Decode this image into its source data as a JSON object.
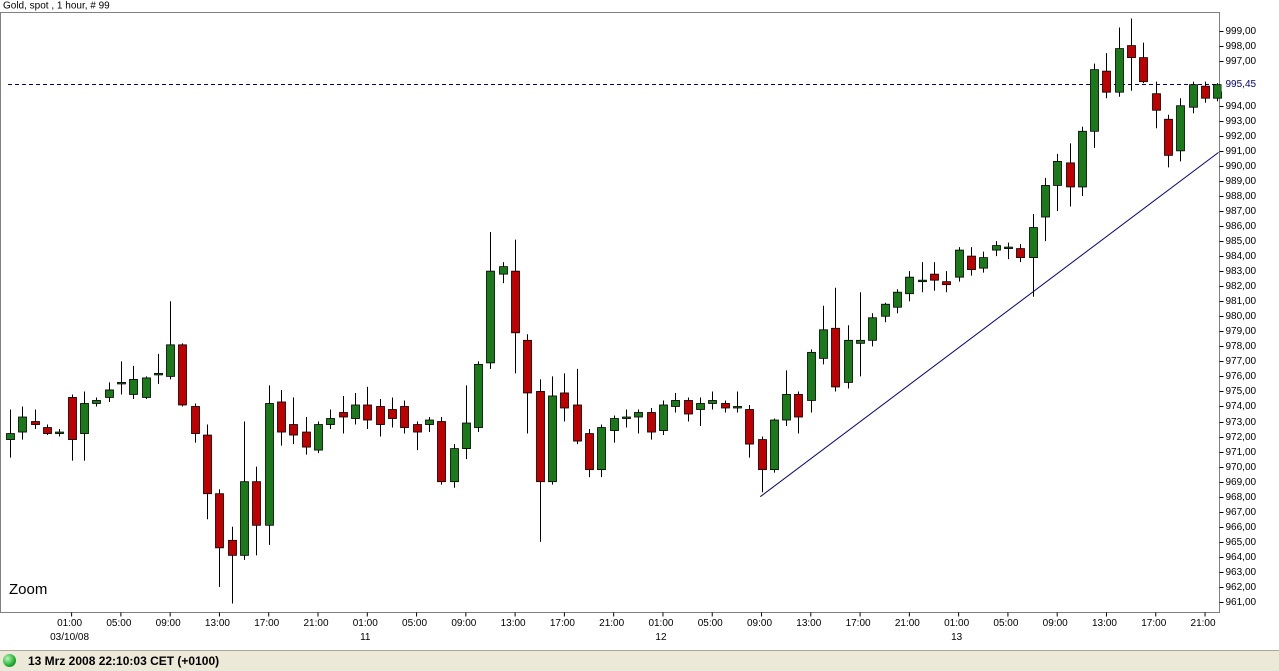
{
  "chart_data": {
    "type": "candlestick",
    "title": "Gold, spot , 1 hour, # 99",
    "zoom_label": "Zoom",
    "categories": [
      null,
      null,
      null,
      null,
      null,
      "01:00",
      null,
      null,
      null,
      "05:00",
      null,
      null,
      null,
      "09:00",
      null,
      null,
      null,
      "13:00",
      null,
      null,
      null,
      "17:00",
      null,
      null,
      null,
      "21:00",
      null,
      null,
      null,
      "01:00",
      null,
      null,
      null,
      "05:00",
      null,
      null,
      null,
      "09:00",
      null,
      null,
      null,
      "13:00",
      null,
      null,
      null,
      "17:00",
      null,
      null,
      null,
      "21:00",
      null,
      null,
      null,
      "01:00",
      null,
      null,
      null,
      "05:00",
      null,
      null,
      null,
      "09:00",
      null,
      null,
      null,
      "13:00",
      null,
      null,
      null,
      "17:00",
      null,
      null,
      null,
      "21:00",
      null,
      null,
      null,
      "01:00",
      null,
      null,
      null,
      "05:00",
      null,
      null,
      null,
      "09:00",
      null,
      null,
      null,
      "13:00",
      null,
      null,
      null,
      "17:00",
      null,
      null,
      null,
      "21:00",
      null
    ],
    "dates": [
      null,
      null,
      null,
      null,
      null,
      "03/10/08",
      null,
      null,
      null,
      null,
      null,
      null,
      null,
      null,
      null,
      null,
      null,
      null,
      null,
      null,
      null,
      null,
      null,
      null,
      null,
      null,
      null,
      null,
      null,
      "11",
      null,
      null,
      null,
      null,
      null,
      null,
      null,
      null,
      null,
      null,
      null,
      null,
      null,
      null,
      null,
      null,
      null,
      null,
      null,
      null,
      null,
      null,
      null,
      "12",
      null,
      null,
      null,
      null,
      null,
      null,
      null,
      null,
      null,
      null,
      null,
      null,
      null,
      null,
      null,
      null,
      null,
      null,
      null,
      null,
      null,
      null,
      null,
      "13",
      null,
      null,
      null,
      null,
      null,
      null,
      null,
      null,
      null,
      null,
      null,
      null,
      null,
      null,
      null,
      null,
      null,
      null,
      null,
      null,
      null
    ],
    "open": [
      971.8,
      972.3,
      973.0,
      972.6,
      972.2,
      974.6,
      972.2,
      974.2,
      974.6,
      975.5,
      974.8,
      974.6,
      976.1,
      976.0,
      978.1,
      974.0,
      972.1,
      968.2,
      965.1,
      964.1,
      969.0,
      966.1,
      974.3,
      972.8,
      972.3,
      971.1,
      972.8,
      973.6,
      973.2,
      974.1,
      974.0,
      973.8,
      974.0,
      972.8,
      972.8,
      973.0,
      969.0,
      971.2,
      972.6,
      976.9,
      982.8,
      983.0,
      978.4,
      975.0,
      969.0,
      974.9,
      974.1,
      972.2,
      969.8,
      972.4,
      973.2,
      973.3,
      973.6,
      972.4,
      974.0,
      974.4,
      973.8,
      974.2,
      974.2,
      973.9,
      973.8,
      971.8,
      969.8,
      973.1,
      974.8,
      974.4,
      977.2,
      979.2,
      975.6,
      978.2,
      978.4,
      980.0,
      980.6,
      981.5,
      982.3,
      982.8,
      982.3,
      982.6,
      984.0,
      983.2,
      984.4,
      984.5,
      984.5,
      983.9,
      986.6,
      988.7,
      990.2,
      988.6,
      992.3,
      996.3,
      994.9,
      998.0,
      997.2,
      994.8,
      993.1,
      991.0,
      993.9,
      995.3,
      994.5
    ],
    "high": [
      973.8,
      974.0,
      973.8,
      972.8,
      972.5,
      974.8,
      975.0,
      974.6,
      975.6,
      977.0,
      976.7,
      976.0,
      977.5,
      981.0,
      978.2,
      974.2,
      972.8,
      968.5,
      966.0,
      973.0,
      970.0,
      975.4,
      975.1,
      974.6,
      973.3,
      973.0,
      973.8,
      974.7,
      974.9,
      975.3,
      974.5,
      974.6,
      974.4,
      973.0,
      973.3,
      973.3,
      971.5,
      975.4,
      977.0,
      985.6,
      983.6,
      985.1,
      978.8,
      975.8,
      976.0,
      976.2,
      976.5,
      972.5,
      972.8,
      973.4,
      973.8,
      973.8,
      973.9,
      974.4,
      974.9,
      974.6,
      974.6,
      975.0,
      974.4,
      975.0,
      974.1,
      972.0,
      973.2,
      976.4,
      975.0,
      977.8,
      980.7,
      981.9,
      979.4,
      981.6,
      980.2,
      980.9,
      981.8,
      983.0,
      983.6,
      983.6,
      983.0,
      984.6,
      984.6,
      984.3,
      985.0,
      984.9,
      984.8,
      986.8,
      989.2,
      990.8,
      991.5,
      992.6,
      996.8,
      997.5,
      999.2,
      999.8,
      998.2,
      995.6,
      993.4,
      994.5,
      995.6,
      995.6,
      995.5
    ],
    "low": [
      970.6,
      971.8,
      972.5,
      972.1,
      972.0,
      970.4,
      970.4,
      974.0,
      974.3,
      974.8,
      974.5,
      974.5,
      975.5,
      975.8,
      974.0,
      971.6,
      966.5,
      962.0,
      960.9,
      963.8,
      964.1,
      964.8,
      971.4,
      971.5,
      970.8,
      970.9,
      972.5,
      972.2,
      972.8,
      972.5,
      972.0,
      972.6,
      972.2,
      971.1,
      972.3,
      968.8,
      968.6,
      970.5,
      972.3,
      976.5,
      982.2,
      976.2,
      972.2,
      965.0,
      968.8,
      973.0,
      971.5,
      969.3,
      969.3,
      971.6,
      972.6,
      972.2,
      971.8,
      972.1,
      973.6,
      973.0,
      972.7,
      973.8,
      973.6,
      973.6,
      970.6,
      968.3,
      969.6,
      972.7,
      972.2,
      973.6,
      976.8,
      975.0,
      975.2,
      976.0,
      978.0,
      979.6,
      980.2,
      981.0,
      981.6,
      981.7,
      981.6,
      982.3,
      982.7,
      982.9,
      984.0,
      983.8,
      983.6,
      981.3,
      985.0,
      987.0,
      987.3,
      988.0,
      991.2,
      994.5,
      994.6,
      995.0,
      995.5,
      992.5,
      989.9,
      990.3,
      993.5,
      994.2,
      994.3
    ],
    "close": [
      972.2,
      973.3,
      972.8,
      972.2,
      972.3,
      971.8,
      974.2,
      974.4,
      975.1,
      975.6,
      975.8,
      975.9,
      976.2,
      978.1,
      974.1,
      972.2,
      968.2,
      964.6,
      964.1,
      969.0,
      966.1,
      974.2,
      972.3,
      972.1,
      971.3,
      972.8,
      973.2,
      973.3,
      974.1,
      973.1,
      972.8,
      973.2,
      972.6,
      972.3,
      973.1,
      969.0,
      971.2,
      972.9,
      976.8,
      983.0,
      983.3,
      978.9,
      974.9,
      969.0,
      974.7,
      973.9,
      971.7,
      969.8,
      972.6,
      973.2,
      973.3,
      973.6,
      972.3,
      974.1,
      974.4,
      973.5,
      974.2,
      974.4,
      973.9,
      974.0,
      971.5,
      969.8,
      973.1,
      974.8,
      973.3,
      977.6,
      979.1,
      975.3,
      978.4,
      978.4,
      979.9,
      980.8,
      981.6,
      982.6,
      982.4,
      982.4,
      982.1,
      984.4,
      983.1,
      983.9,
      984.7,
      984.6,
      983.9,
      985.9,
      988.7,
      990.3,
      988.6,
      992.3,
      996.4,
      994.9,
      997.8,
      997.2,
      995.6,
      993.7,
      990.7,
      994.0,
      995.4,
      994.5,
      995.4
    ],
    "up_color": "#1a7a1a",
    "down_color": "#c00000",
    "last_price": {
      "value": 995.45,
      "label": "995,45"
    },
    "trendline": {
      "x": [
        60.9,
        98.1
      ],
      "values": [
        968.0,
        990.9
      ]
    },
    "ylim": [
      960.3,
      1000.2
    ],
    "yticks": [
      {
        "value": 961,
        "label": "961,00"
      },
      {
        "value": 962,
        "label": "962,00"
      },
      {
        "value": 963,
        "label": "963,00"
      },
      {
        "value": 964,
        "label": "964,00"
      },
      {
        "value": 965,
        "label": "965,00"
      },
      {
        "value": 966,
        "label": "966,00"
      },
      {
        "value": 967,
        "label": "967,00"
      },
      {
        "value": 968,
        "label": "968,00"
      },
      {
        "value": 969,
        "label": "969,00"
      },
      {
        "value": 970,
        "label": "970,00"
      },
      {
        "value": 971,
        "label": "971,00"
      },
      {
        "value": 972,
        "label": "972,00"
      },
      {
        "value": 973,
        "label": "973,00"
      },
      {
        "value": 974,
        "label": "974,00"
      },
      {
        "value": 975,
        "label": "975,00"
      },
      {
        "value": 976,
        "label": "976,00"
      },
      {
        "value": 977,
        "label": "977,00"
      },
      {
        "value": 978,
        "label": "978,00"
      },
      {
        "value": 979,
        "label": "979,00"
      },
      {
        "value": 980,
        "label": "980,00"
      },
      {
        "value": 981,
        "label": "981,00"
      },
      {
        "value": 982,
        "label": "982,00"
      },
      {
        "value": 983,
        "label": "983,00"
      },
      {
        "value": 984,
        "label": "984,00"
      },
      {
        "value": 985,
        "label": "985,00"
      },
      {
        "value": 986,
        "label": "986,00"
      },
      {
        "value": 987,
        "label": "987,00"
      },
      {
        "value": 988,
        "label": "988,00"
      },
      {
        "value": 989,
        "label": "989,00"
      },
      {
        "value": 990,
        "label": "990,00"
      },
      {
        "value": 991,
        "label": "991,00"
      },
      {
        "value": 992,
        "label": "992,00"
      },
      {
        "value": 993,
        "label": "993,00"
      },
      {
        "value": 994,
        "label": "994,00"
      },
      {
        "value": 997,
        "label": "997,00"
      },
      {
        "value": 998,
        "label": "998,00"
      },
      {
        "value": 999,
        "label": "999,00"
      }
    ],
    "status": "13 Mrz 2008 22:10:03  CET (+0100)"
  }
}
